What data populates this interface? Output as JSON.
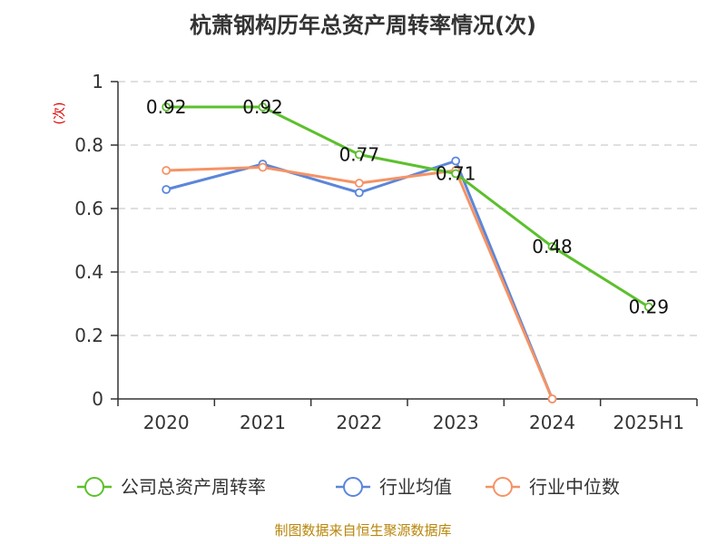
{
  "chart_data": {
    "type": "line",
    "title": "杭萧钢构历年总资产周转率情况(次)",
    "ylabel": "(次)",
    "categories": [
      "2020",
      "2021",
      "2022",
      "2023",
      "2024",
      "2025H1"
    ],
    "ylim": [
      0,
      1
    ],
    "yticks": [
      "0",
      "0.2",
      "0.4",
      "0.6",
      "0.8",
      "1"
    ],
    "grid": true,
    "legend_position": "bottom",
    "series": [
      {
        "name": "公司总资产周转率",
        "color": "#5cc02d",
        "values": [
          0.92,
          0.92,
          0.77,
          0.71,
          0.48,
          0.29
        ],
        "labels": [
          "0.92",
          "0.92",
          "0.77",
          "0.71",
          "0.48",
          "0.29"
        ]
      },
      {
        "name": "行业均值",
        "color": "#5b86d9",
        "values": [
          0.66,
          0.74,
          0.65,
          0.75,
          0.0,
          null
        ]
      },
      {
        "name": "行业中位数",
        "color": "#f59365",
        "values": [
          0.72,
          0.73,
          0.68,
          0.72,
          0.0,
          null
        ]
      }
    ],
    "source": "制图数据来自恒生聚源数据库"
  }
}
